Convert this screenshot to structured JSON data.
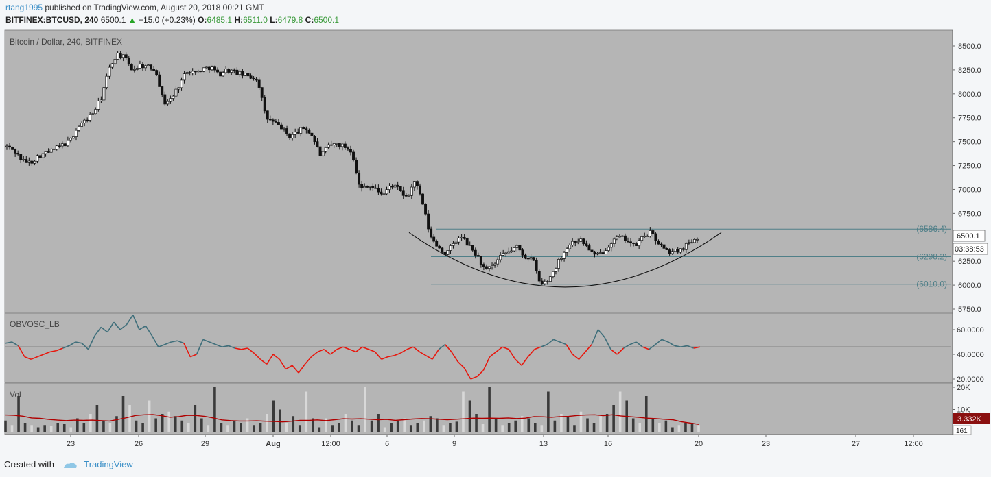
{
  "header": {
    "user": "rtang1995",
    "published": " published on TradingView.com, August 20, 2018 00:21 GMT",
    "symbol": "BITFINEX:BTCUSD, 240",
    "last": "6500.1",
    "change": "+15.0 (+0.23%)",
    "o_label": "O:",
    "o": "6485.1",
    "h_label": "H:",
    "h": "6511.0",
    "l_label": "L:",
    "l": "6479.8",
    "c_label": "C:",
    "c": "6500.1"
  },
  "footer": {
    "created": "Created with",
    "brand": "TradingView"
  },
  "chart_data": [
    {
      "type": "candlestick",
      "title": "Bitcoin / Dollar, 240, BITFINEX",
      "ylim": [
        5700,
        8600
      ],
      "y_ticks": [
        "8500.0",
        "8250.0",
        "8000.0",
        "7750.0",
        "7500.0",
        "7250.0",
        "7000.0",
        "6750.0",
        "6500.0",
        "6250.0",
        "6000.0",
        "5750.0"
      ],
      "x_ticks": [
        "23",
        "26",
        "29",
        "Aug",
        "12:00",
        "6",
        "9",
        "13",
        "16",
        "20",
        "23",
        "27",
        "12:00"
      ],
      "price_label": "6500.1",
      "countdown": "03:38:53",
      "close_path": [
        7450,
        7400,
        7300,
        7280,
        7350,
        7380,
        7420,
        7460,
        7500,
        7650,
        7720,
        7800,
        7950,
        8250,
        8420,
        8380,
        8250,
        8300,
        8280,
        8250,
        7900,
        7950,
        8100,
        8250,
        8220,
        8260,
        8280,
        8200,
        8250,
        8230,
        8200,
        8180,
        8150,
        7750,
        7700,
        7650,
        7550,
        7600,
        7650,
        7550,
        7350,
        7450,
        7480,
        7450,
        7400,
        7000,
        7050,
        7000,
        6950,
        7050,
        7000,
        6900,
        7100,
        6850,
        6500,
        6400,
        6320,
        6450,
        6500,
        6400,
        6300,
        6150,
        6200,
        6300,
        6350,
        6400,
        6300,
        6280,
        6000,
        6050,
        6200,
        6350,
        6450,
        6480,
        6400,
        6300,
        6350,
        6450,
        6500,
        6480,
        6400,
        6500,
        6550,
        6450,
        6350,
        6350,
        6380,
        6450,
        6500
      ],
      "levels": [
        {
          "label": "(6586.4)",
          "value": 6586.4
        },
        {
          "label": "(6298.2)",
          "value": 6298.2
        },
        {
          "label": "(6010.0)",
          "value": 6010.0
        }
      ],
      "arc": {
        "start": 6550,
        "bottom": 5980,
        "end": 6550
      }
    },
    {
      "type": "line",
      "title": "OBVOSC_LB",
      "ylim": [
        16,
        76
      ],
      "y_ticks": [
        "60.0000",
        "40.0000",
        "20.0000"
      ],
      "baseline": 46,
      "colors": {
        "above": "#3e6e7a",
        "below": "#e8160c"
      },
      "values": [
        49,
        50,
        47,
        38,
        36,
        38,
        40,
        42,
        43,
        45,
        47,
        50,
        49,
        44,
        55,
        62,
        58,
        66,
        60,
        64,
        72,
        60,
        63,
        55,
        46,
        48,
        50,
        51,
        49,
        38,
        40,
        52,
        50,
        48,
        46,
        47,
        45,
        44,
        45,
        41,
        36,
        32,
        40,
        36,
        28,
        31,
        25,
        32,
        38,
        42,
        44,
        40,
        44,
        46,
        44,
        42,
        46,
        44,
        42,
        36,
        38,
        39,
        41,
        44,
        46,
        42,
        39,
        36,
        44,
        48,
        42,
        34,
        29,
        20,
        22,
        27,
        38,
        42,
        46,
        44,
        36,
        31,
        38,
        44,
        46,
        48,
        52,
        50,
        48,
        40,
        36,
        42,
        48,
        60,
        54,
        44,
        40,
        45,
        48,
        50,
        46,
        44,
        48,
        52,
        50,
        47,
        46,
        47,
        45,
        46
      ]
    },
    {
      "type": "bar",
      "title": "Vol",
      "ylim": [
        0,
        21000
      ],
      "y_ticks": [
        "20K",
        "10K"
      ],
      "labels": [
        "3.332K",
        "161"
      ],
      "volumes": [
        5000,
        3000,
        16000,
        4000,
        3000,
        2000,
        3000,
        2500,
        4000,
        3500,
        2000,
        6000,
        4000,
        8000,
        12000,
        5000,
        4000,
        7000,
        16000,
        12000,
        5000,
        4000,
        14000,
        6000,
        8000,
        9000,
        7000,
        5000,
        4000,
        12000,
        6000,
        3000,
        20000,
        4000,
        3000,
        5000,
        4000,
        6000,
        3000,
        4000,
        8000,
        14000,
        10000,
        4000,
        7000,
        3000,
        18000,
        6000,
        2000,
        6000,
        3000,
        4000,
        8000,
        5000,
        3000,
        20000,
        5000,
        8000,
        2000,
        4000,
        5000,
        6000,
        3000,
        4000,
        5000,
        7000,
        6000,
        3000,
        4000,
        4500,
        18000,
        14000,
        8000,
        3500,
        20000,
        6000,
        3000,
        4000,
        5000,
        7000,
        6000,
        4000,
        3000,
        18000,
        5000,
        8000,
        7000,
        3000,
        9000,
        6000,
        4000,
        7000,
        8000,
        12000,
        18000,
        14000,
        6000,
        4000,
        16000,
        6000,
        4000,
        5000,
        2000,
        3000,
        4000,
        4000,
        3000
      ],
      "ma": [
        7500,
        7400,
        7000,
        6200,
        6000,
        5500,
        5200,
        5000,
        5200,
        5100,
        5200,
        5000,
        4800,
        5500,
        6300,
        7300,
        7600,
        7700,
        7200,
        6500,
        6800,
        7400,
        7300,
        6900,
        6200,
        5300,
        5000,
        4800,
        4800,
        4900,
        4700,
        4600,
        4400,
        4700,
        5100,
        5100,
        5300,
        5000,
        5400,
        5800,
        5700,
        5800,
        5600,
        5400,
        5500,
        5100,
        5400,
        5700,
        5900,
        5800,
        5600,
        5400,
        5600,
        5800,
        6100,
        6000,
        6100,
        6000,
        6200,
        5900,
        6100,
        6800,
        6700,
        6500,
        6800,
        6900,
        7300,
        7500,
        7600,
        7200,
        7600,
        7100,
        6800,
        6500,
        6100,
        5900,
        5600,
        5400,
        4500,
        3900,
        3332
      ]
    }
  ]
}
